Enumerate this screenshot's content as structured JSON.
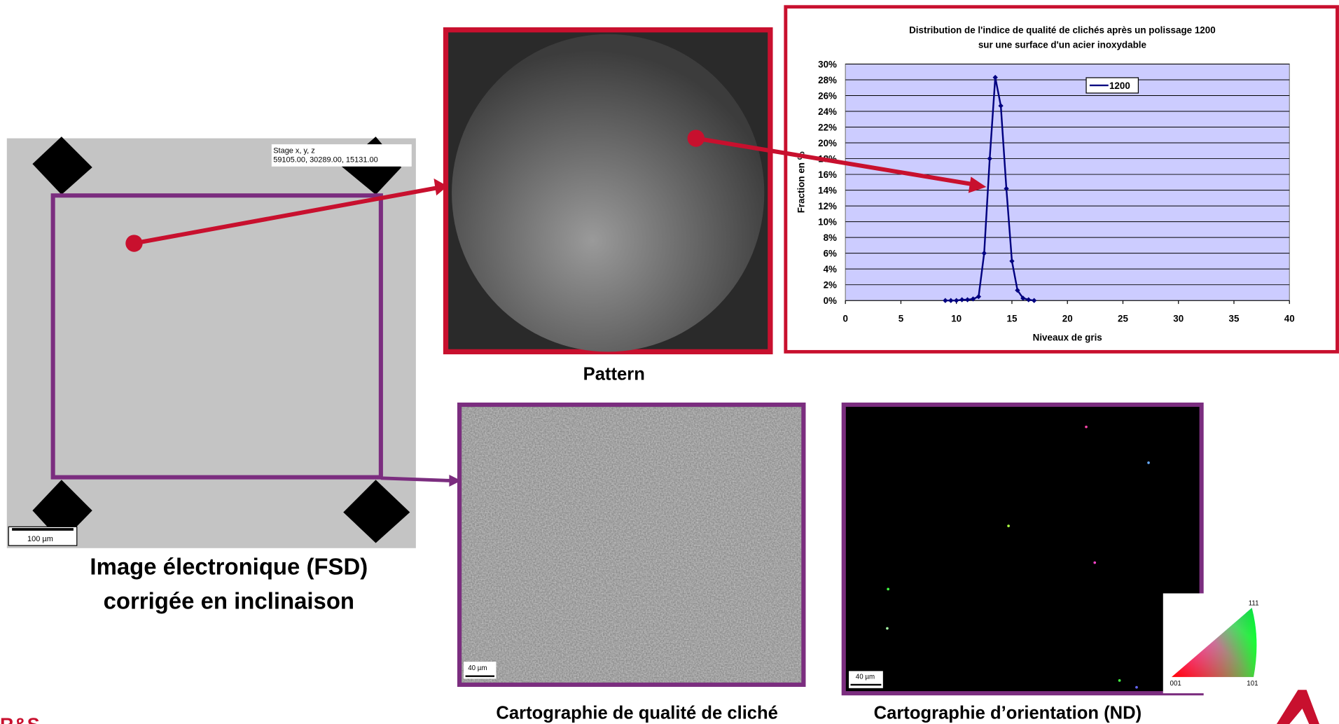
{
  "fsd": {
    "stage_label": "Stage x, y, z",
    "stage_values": "59105.00, 30289.00, 15131.00",
    "scale": "100 µm",
    "caption": [
      "Image électronique (FSD)",
      "corrigée en inclinaison"
    ]
  },
  "pattern": {
    "caption": "Pattern"
  },
  "quality_map": {
    "scale": "40 µm",
    "caption": "Cartographie de qualité de cliché"
  },
  "orientation_map": {
    "scale": "40 µm",
    "caption": "Cartographie d’orientation (ND)",
    "legend": {
      "top": "111",
      "left": "001",
      "right": "101"
    }
  },
  "logo": "R&S",
  "chart_data": {
    "type": "line",
    "title": [
      "Distribution de l'indice de qualité de clichés après un polissage 1200",
      "sur une surface d'un acier inoxydable"
    ],
    "xlabel": "Niveaux de gris",
    "ylabel": "Fraction en %",
    "x": [
      9,
      9.5,
      10,
      10.5,
      11,
      11.5,
      12,
      12.5,
      13,
      13.5,
      14,
      14.5,
      15,
      15.5,
      16,
      16.5,
      17
    ],
    "series": [
      {
        "name": "1200",
        "color": "#000080",
        "values": [
          0,
          0,
          0,
          0.1,
          0.1,
          0.2,
          0.5,
          6,
          18,
          28.3,
          24.7,
          14.2,
          5,
          1.3,
          0.3,
          0.1,
          0
        ]
      }
    ],
    "xlim": [
      0,
      40
    ],
    "xticks": [
      0,
      5,
      10,
      15,
      20,
      25,
      30,
      35,
      40
    ],
    "ylim": [
      0,
      30
    ],
    "yticks": [
      {
        "value": 0,
        "label": "0%"
      },
      {
        "value": 2,
        "label": "2%"
      },
      {
        "value": 4,
        "label": "4%"
      },
      {
        "value": 6,
        "label": "6%"
      },
      {
        "value": 8,
        "label": "8%"
      },
      {
        "value": 10,
        "label": "10%"
      },
      {
        "value": 12,
        "label": "12%"
      },
      {
        "value": 14,
        "label": "14%"
      },
      {
        "value": 16,
        "label": "16%"
      },
      {
        "value": 18,
        "label": "18%"
      },
      {
        "value": 20,
        "label": "20%"
      },
      {
        "value": 22,
        "label": "22%"
      },
      {
        "value": 24,
        "label": "24%"
      },
      {
        "value": 26,
        "label": "26%"
      },
      {
        "value": 28,
        "label": "28%"
      },
      {
        "value": 30,
        "label": "30%"
      }
    ],
    "grid": true,
    "legend_loc": "upper right",
    "plot_background": "#ccccff"
  }
}
